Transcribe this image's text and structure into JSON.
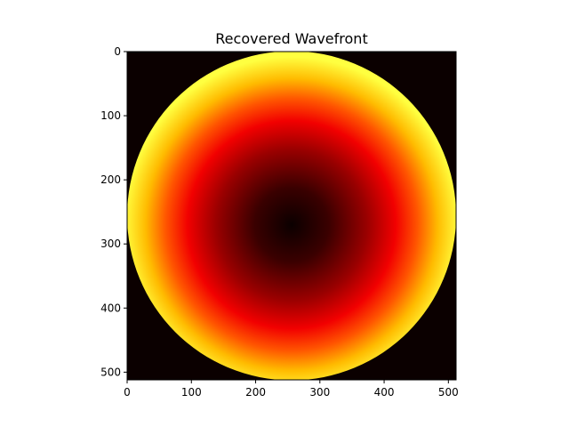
{
  "chart_data": {
    "type": "heatmap",
    "title": "Recovered Wavefront",
    "xlabel": "",
    "ylabel": "",
    "colormap": "hot",
    "image_shape": [
      512,
      512
    ],
    "xlim": [
      0,
      512
    ],
    "ylim": [
      512,
      0
    ],
    "x_ticks": [
      0,
      100,
      200,
      300,
      400,
      500
    ],
    "y_ticks": [
      0,
      100,
      200,
      300,
      400,
      500
    ],
    "x_tick_labels": [
      "0",
      "100",
      "200",
      "300",
      "400",
      "500"
    ],
    "y_tick_labels": [
      "0",
      "100",
      "200",
      "300",
      "400",
      "500"
    ],
    "aperture": {
      "shape": "circle",
      "center": [
        256,
        256
      ],
      "radius": 256
    },
    "field_minimum": [
      256,
      270
    ],
    "field_description": "radially increasing values from dark center to bright yellow rim",
    "background_color": "#0b0000",
    "grid": false,
    "legend": "none",
    "colorbar": false
  }
}
